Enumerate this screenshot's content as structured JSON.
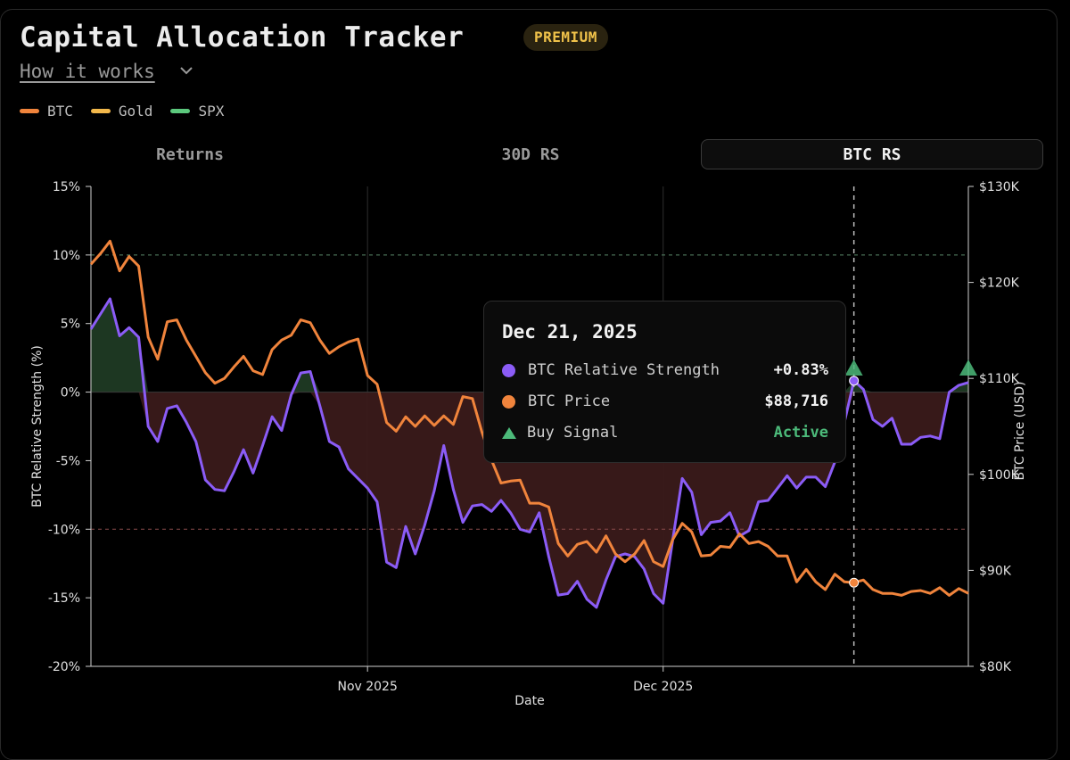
{
  "header": {
    "title": "Capital Allocation Tracker",
    "badge": "PREMIUM",
    "how_it_works": "How it works"
  },
  "legend": [
    {
      "label": "BTC",
      "color": "#f0843c"
    },
    {
      "label": "Gold",
      "color": "#f2b84b"
    },
    {
      "label": "SPX",
      "color": "#5cc87d"
    }
  ],
  "tabs": [
    {
      "label": "Returns",
      "active": false
    },
    {
      "label": "30D RS",
      "active": false
    },
    {
      "label": "BTC RS",
      "active": true
    }
  ],
  "tooltip": {
    "date": "Dec 21, 2025",
    "rows": [
      {
        "label": "BTC Relative Strength",
        "value": "+0.83%",
        "marker": "dot",
        "color": "#8b5cf6"
      },
      {
        "label": "BTC Price",
        "value": "$88,716",
        "marker": "dot",
        "color": "#f0843c"
      },
      {
        "label": "Buy Signal",
        "value": "Active",
        "marker": "triangle",
        "color": "#4cba7a"
      }
    ]
  },
  "chart_data": {
    "type": "line",
    "title": "",
    "xlabel": "Date",
    "ylabel_left": "BTC Relative Strength (%)",
    "ylabel_right": "BTC Price (USD)",
    "x_range_days": [
      0,
      92
    ],
    "x_ticks": [
      {
        "day": 29,
        "label": "Nov 2025"
      },
      {
        "day": 60,
        "label": "Dec 2025"
      }
    ],
    "ylim_left": [
      -20,
      15
    ],
    "y_ticks_left": [
      {
        "v": 15,
        "label": "15%"
      },
      {
        "v": 10,
        "label": "10%"
      },
      {
        "v": 5,
        "label": "5%"
      },
      {
        "v": 0,
        "label": "0%"
      },
      {
        "v": -5,
        "label": "-5%"
      },
      {
        "v": -10,
        "label": "-10%"
      },
      {
        "v": -15,
        "label": "-15%"
      },
      {
        "v": -20,
        "label": "-20%"
      }
    ],
    "ylim_right": [
      80000,
      130000
    ],
    "y_ticks_right": [
      {
        "v": 130000,
        "label": "$130K"
      },
      {
        "v": 120000,
        "label": "$120K"
      },
      {
        "v": 110000,
        "label": "$110K"
      },
      {
        "v": 100000,
        "label": "$100K"
      },
      {
        "v": 90000,
        "label": "$90K"
      },
      {
        "v": 80000,
        "label": "$80K"
      }
    ],
    "thresholds": [
      {
        "value": 10,
        "color": "#5a8a6a"
      },
      {
        "value": -10,
        "color": "#8a4a4a"
      }
    ],
    "series": [
      {
        "name": "BTC Relative Strength",
        "axis": "left",
        "color": "#8b5cf6",
        "values": [
          4.6,
          5.7,
          6.8,
          4.1,
          4.7,
          4.0,
          -2.5,
          -3.6,
          -1.2,
          -1.0,
          -2.2,
          -3.6,
          -6.4,
          -7.1,
          -7.2,
          -5.8,
          -4.2,
          -5.9,
          -3.9,
          -1.8,
          -2.8,
          -0.2,
          1.4,
          1.5,
          -1.0,
          -3.6,
          -4.0,
          -5.6,
          -6.3,
          -7.0,
          -8.0,
          -12.4,
          -12.8,
          -9.8,
          -11.8,
          -9.7,
          -7.2,
          -3.9,
          -7.1,
          -9.5,
          -8.3,
          -8.2,
          -8.7,
          -7.9,
          -8.8,
          -10.0,
          -10.2,
          -8.8,
          -12.0,
          -14.8,
          -14.7,
          -13.8,
          -15.1,
          -15.7,
          -13.7,
          -12.0,
          -11.8,
          -12.0,
          -12.9,
          -14.7,
          -15.4,
          -10.8,
          -6.3,
          -7.3,
          -10.4,
          -9.5,
          -9.4,
          -8.8,
          -10.5,
          -10.1,
          -8.0,
          -7.9,
          -7.0,
          -6.1,
          -7.0,
          -6.2,
          -6.2,
          -6.9,
          -5.1,
          -2.2,
          0.83,
          0.2,
          -2.0,
          -2.5,
          -1.9,
          -3.8,
          -3.8,
          -3.3,
          -3.2,
          -3.4,
          0.0,
          0.5,
          0.7
        ]
      },
      {
        "name": "BTC Price",
        "axis": "right",
        "color": "#f0843c",
        "values": [
          121900,
          123000,
          124300,
          121200,
          122700,
          121700,
          114300,
          112000,
          115900,
          116100,
          114000,
          112300,
          110600,
          109500,
          110000,
          111200,
          112300,
          110800,
          110400,
          113000,
          114000,
          114500,
          116100,
          115800,
          114000,
          112600,
          113300,
          113800,
          114100,
          110300,
          109400,
          105400,
          104500,
          106000,
          105000,
          106100,
          105100,
          106100,
          105200,
          108100,
          107900,
          104400,
          101500,
          99100,
          99300,
          99400,
          97000,
          97000,
          96600,
          92800,
          91500,
          92700,
          93000,
          91900,
          93600,
          91700,
          90900,
          91700,
          93100,
          90900,
          90400,
          93200,
          94900,
          94000,
          91500,
          91600,
          92500,
          92400,
          93800,
          92800,
          93000,
          92500,
          91500,
          91500,
          88800,
          90100,
          88800,
          88000,
          89600,
          88800,
          88716,
          89000,
          88000,
          87600,
          87600,
          87400,
          87800,
          87900,
          87600,
          88200,
          87400,
          88100,
          87600
        ]
      }
    ],
    "fill": {
      "positive_color": "#1f3a24",
      "negative_color": "#3a1a1a"
    },
    "cursor_day": 80,
    "buy_signals": [
      80,
      92
    ]
  }
}
